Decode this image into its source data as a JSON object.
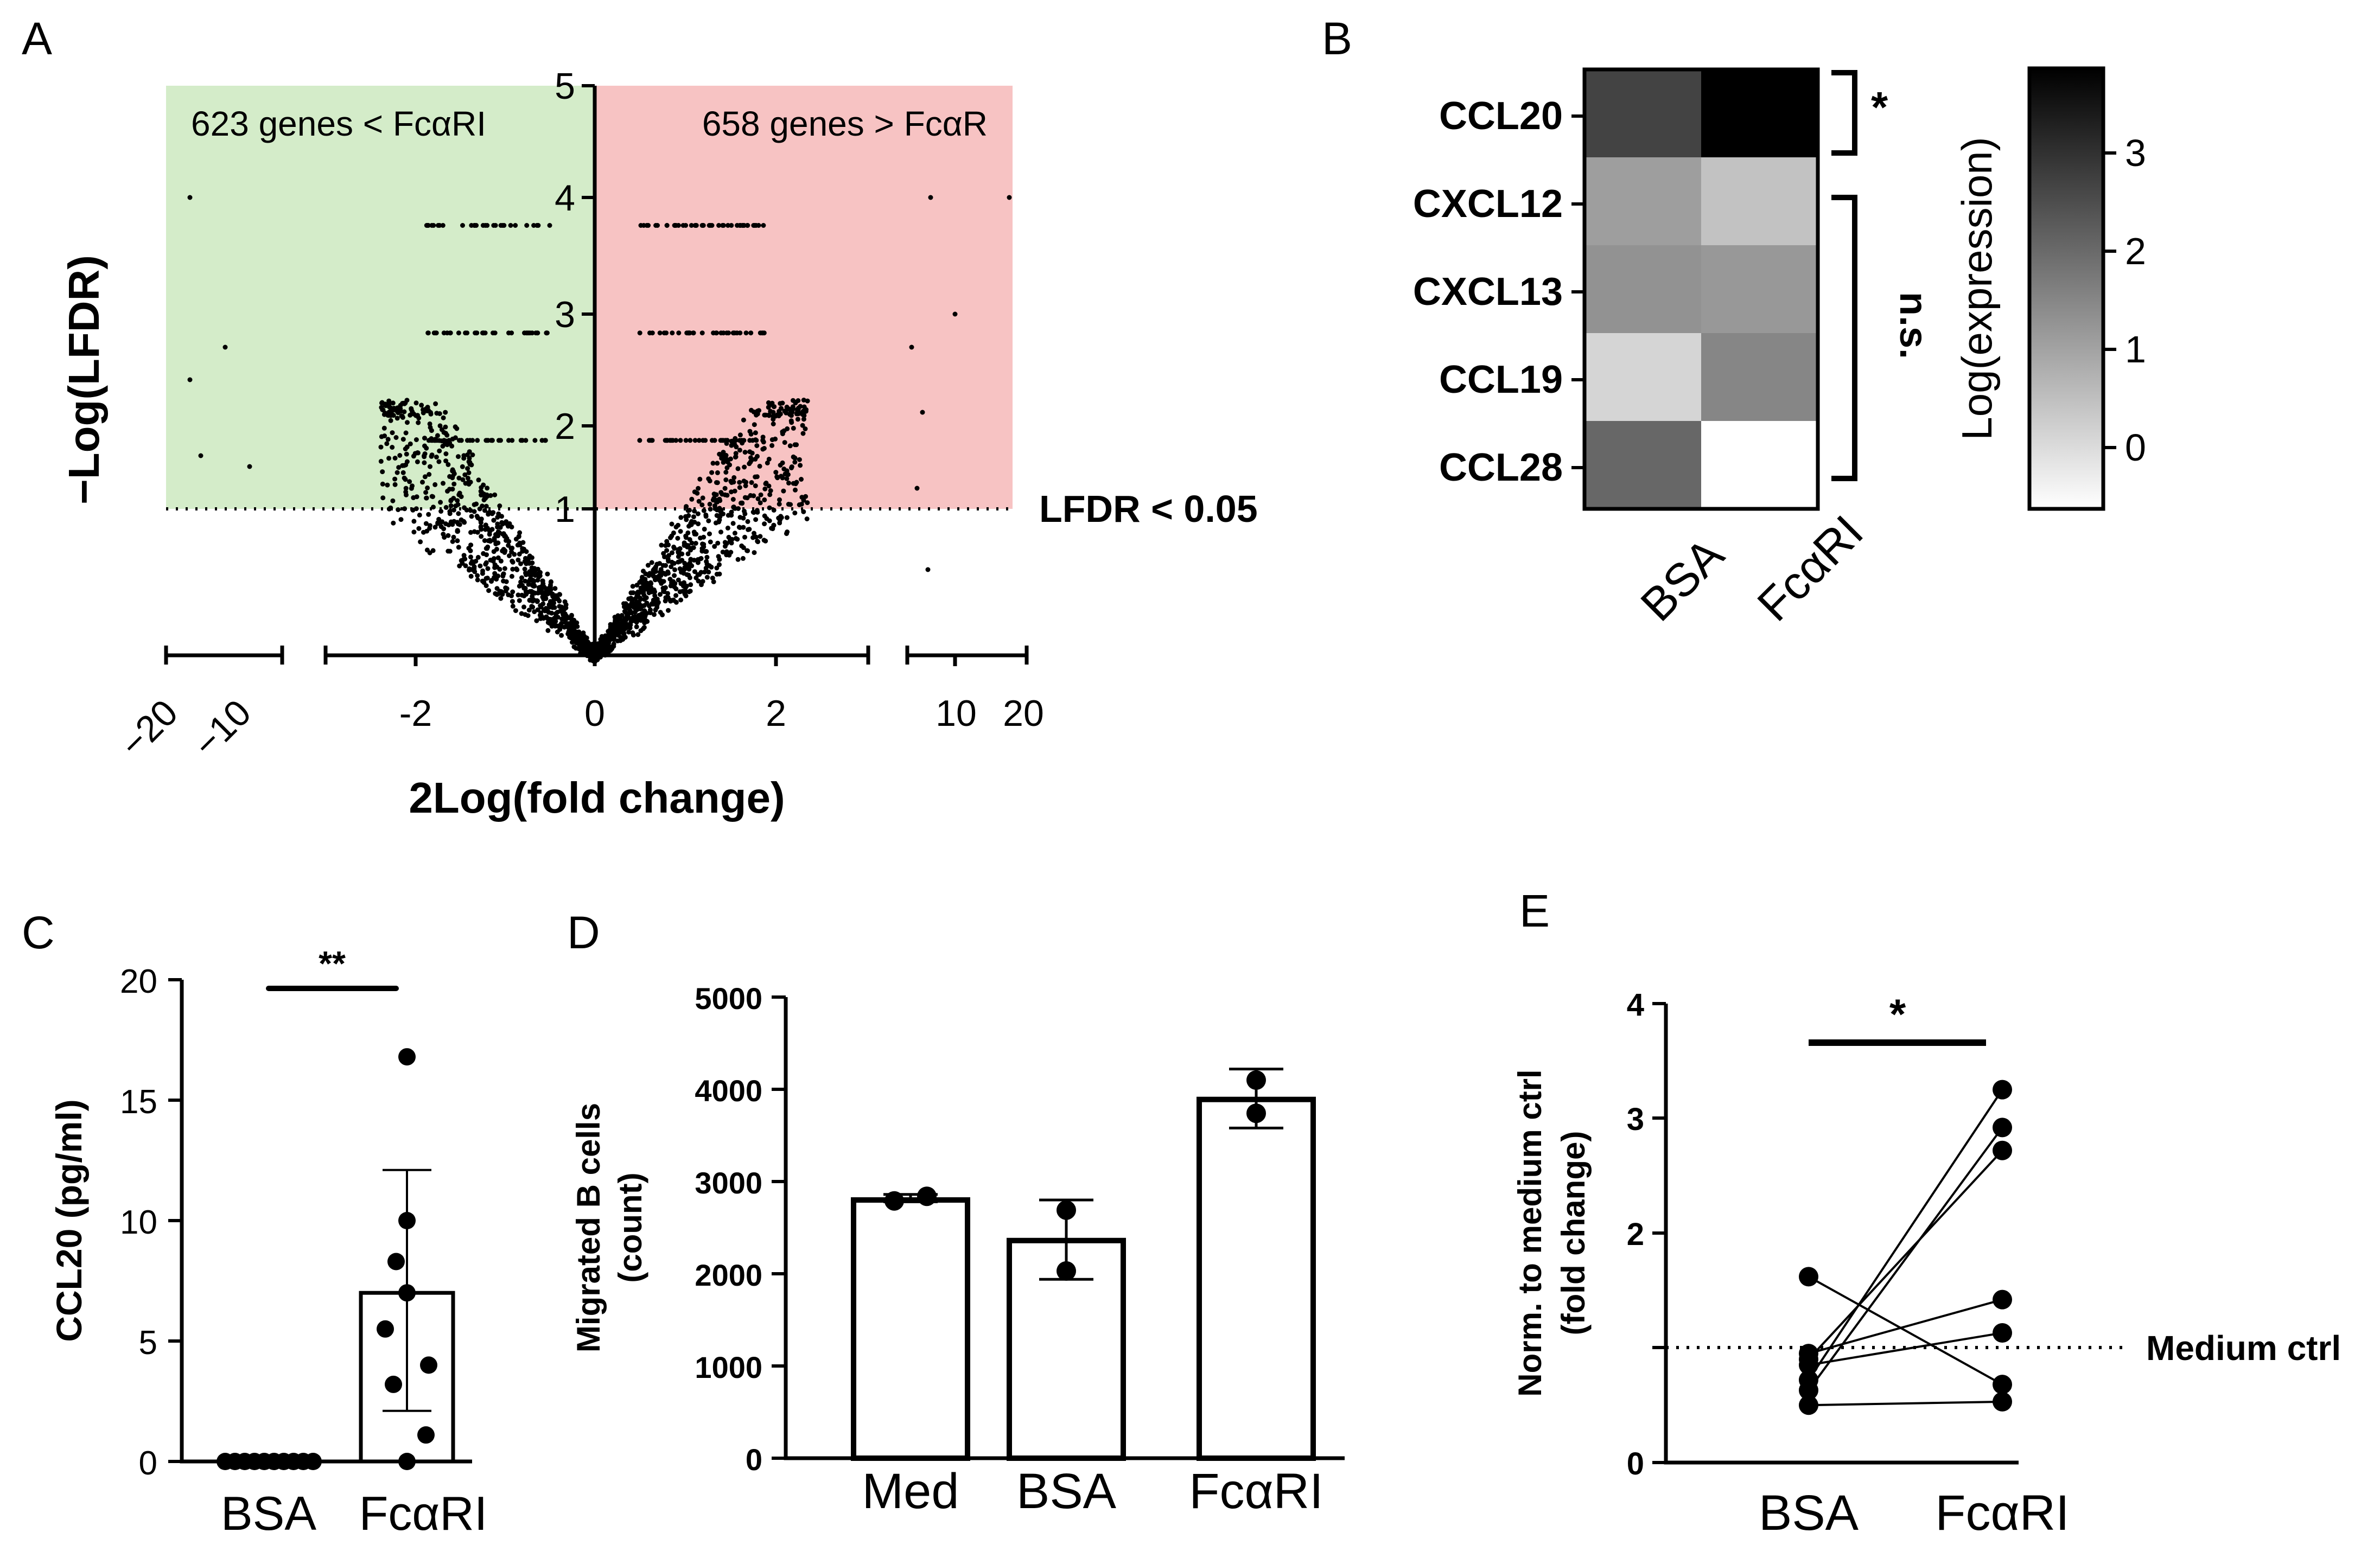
{
  "panels": {
    "A": {
      "label": "A",
      "type": "scatter",
      "left_annotation": "623 genes < FcαRI",
      "right_annotation": "658 genes > FcαR",
      "threshold_label": "LFDR < 0.05",
      "ylabel": "−Log(LFDR)",
      "xlabel": "2Log(fold change)",
      "y_ticks": [
        "1",
        "2",
        "3",
        "4",
        "5"
      ],
      "x_ticks_left": [
        "−20",
        "−10"
      ],
      "x_ticks_mid": [
        "-2",
        "0",
        "2"
      ],
      "x_ticks_right": [
        "10",
        "20"
      ],
      "colors": {
        "left_region": "#d4ecc9",
        "right_region": "#f7c3c3",
        "points": "#000000"
      }
    },
    "B": {
      "label": "B",
      "type": "heatmap",
      "rows": [
        "CCL20",
        "CXCL12",
        "CXCL13",
        "CCL19",
        "CCL28"
      ],
      "columns": [
        "BSA",
        "FcαRI"
      ],
      "values": [
        [
          2.7,
          3.8
        ],
        [
          1.2,
          0.6
        ],
        [
          1.4,
          1.3
        ],
        [
          0.3,
          1.6
        ],
        [
          2.1,
          -0.4
        ]
      ],
      "sig_top": "*",
      "sig_rest": "n.s.",
      "colorbar_label": "Log(expression)",
      "colorbar_ticks": [
        "3",
        "2",
        "1",
        "0"
      ],
      "colorbar_range": [
        -0.4,
        3.8
      ]
    },
    "C": {
      "label": "C",
      "type": "bar",
      "ylabel": "CCL20 (pg/ml)",
      "categories": [
        "BSA",
        "FcαRI"
      ],
      "means": [
        0,
        7.0
      ],
      "errors": [
        [
          0,
          0
        ],
        [
          2.1,
          12.1
        ]
      ],
      "points": [
        [
          0,
          0,
          0,
          0,
          0,
          0,
          0,
          0,
          0,
          0
        ],
        [
          16.8,
          10.0,
          8.3,
          7.0,
          5.5,
          4.0,
          3.2,
          1.1,
          0.0
        ]
      ],
      "y_ticks": [
        "0",
        "5",
        "10",
        "15",
        "20"
      ],
      "ylim": [
        0,
        20
      ],
      "sig": "**"
    },
    "D": {
      "label": "D",
      "type": "bar",
      "ylabel_line1": "Migrated B cells",
      "ylabel_line2": "(count)",
      "categories": [
        "Med",
        "BSA",
        "FcαRI"
      ],
      "means": [
        2800,
        2360,
        3890
      ],
      "errors": [
        [
          2780,
          2860
        ],
        [
          1940,
          2800
        ],
        [
          3580,
          4220
        ]
      ],
      "points": [
        [
          2790,
          2840
        ],
        [
          2690,
          2030
        ],
        [
          4100,
          3740
        ]
      ],
      "y_ticks": [
        "0",
        "1000",
        "2000",
        "3000",
        "4000",
        "5000"
      ],
      "ylim": [
        0,
        5000
      ]
    },
    "E": {
      "label": "E",
      "type": "paired",
      "ylabel_line1": "Norm. to medium ctrl",
      "ylabel_line2": "(fold change)",
      "categories": [
        "BSA",
        "FcαRI"
      ],
      "pairs": [
        [
          1.62,
          0.68
        ],
        [
          0.95,
          1.42
        ],
        [
          0.9,
          2.72
        ],
        [
          0.85,
          1.13
        ],
        [
          0.72,
          3.25
        ],
        [
          0.63,
          2.92
        ],
        [
          0.5,
          0.53
        ]
      ],
      "reference_label": "Medium ctrl",
      "y_ticks": [
        "0",
        "2",
        "3",
        "4"
      ],
      "ylim": [
        0,
        4
      ],
      "sig": "*"
    }
  }
}
